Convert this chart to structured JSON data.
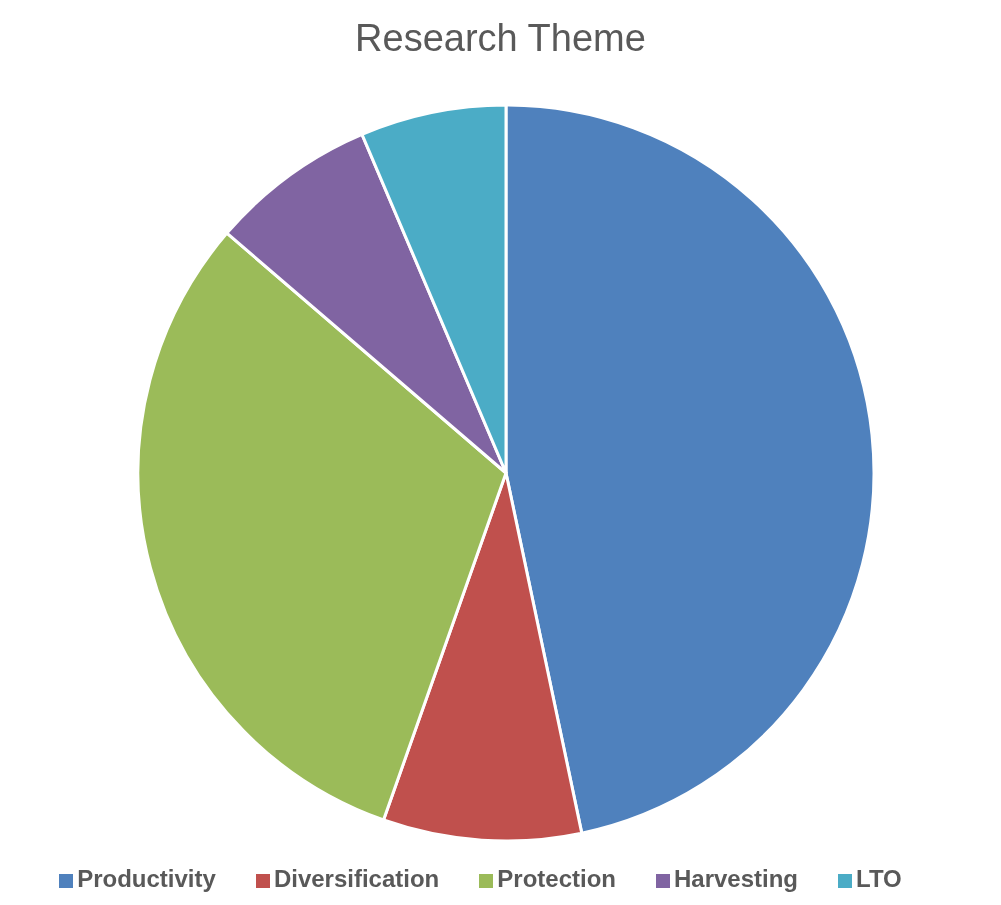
{
  "chart_data": {
    "type": "pie",
    "title": "Research Theme",
    "categories": [
      "Productivity",
      "Diversification",
      "Protection",
      "Harvesting",
      "LTO"
    ],
    "values": [
      46.7,
      8.7,
      30.9,
      7.3,
      6.4
    ],
    "colors": [
      "#4f81bd",
      "#c0504d",
      "#9bbb59",
      "#8064a2",
      "#4bacc6"
    ],
    "legend": "bottom"
  }
}
